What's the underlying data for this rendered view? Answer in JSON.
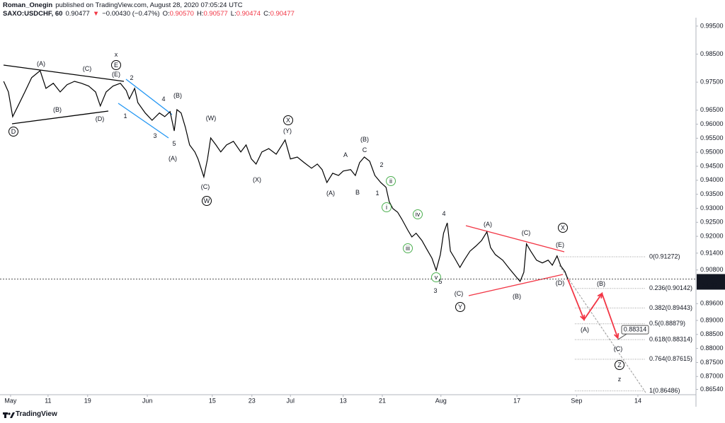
{
  "header": {
    "author": "Roman_Onegin",
    "published": "published on TradingView.com, August 28, 2020 07:05:24 UTC",
    "symbol": "SAXO:USDCHF, 60",
    "last": "0.90477",
    "change": "−0.00430 (−0.47%)",
    "ohlc": [
      {
        "label": "O:",
        "value": "0.90570"
      },
      {
        "label": "H:",
        "value": "0.90577"
      },
      {
        "label": "L:",
        "value": "0.90474"
      },
      {
        "label": "C:",
        "value": "0.90477"
      }
    ]
  },
  "footer": {
    "brand": "TradingView"
  },
  "chart_data": {
    "type": "line",
    "color": "#000000",
    "grid": false,
    "xlim": [
      0,
      131.8
    ],
    "ylim": [
      0.8635,
      0.998
    ],
    "xticks": [
      {
        "value": 2.0,
        "label": "May"
      },
      {
        "value": 9.1,
        "label": "11"
      },
      {
        "value": 16.6,
        "label": "19"
      },
      {
        "value": 27.9,
        "label": "Jun"
      },
      {
        "value": 40.2,
        "label": "15"
      },
      {
        "value": 47.7,
        "label": "23"
      },
      {
        "value": 55.0,
        "label": "Jul"
      },
      {
        "value": 65.0,
        "label": "13"
      },
      {
        "value": 72.4,
        "label": "21"
      },
      {
        "value": 83.5,
        "label": "Aug"
      },
      {
        "value": 97.9,
        "label": "17"
      },
      {
        "value": 109.2,
        "label": "Sep"
      },
      {
        "value": 120.8,
        "label": "14"
      }
    ],
    "yticks": [
      {
        "value": 0.995,
        "label": "0.99500"
      },
      {
        "value": 0.985,
        "label": "0.98500"
      },
      {
        "value": 0.975,
        "label": "0.97500"
      },
      {
        "value": 0.965,
        "label": "0.96500"
      },
      {
        "value": 0.96,
        "label": "0.96000"
      },
      {
        "value": 0.955,
        "label": "0.95500"
      },
      {
        "value": 0.95,
        "label": "0.95000"
      },
      {
        "value": 0.945,
        "label": "0.94500"
      },
      {
        "value": 0.94,
        "label": "0.94000"
      },
      {
        "value": 0.935,
        "label": "0.93500"
      },
      {
        "value": 0.93,
        "label": "0.93000"
      },
      {
        "value": 0.925,
        "label": "0.92500"
      },
      {
        "value": 0.92,
        "label": "0.92000"
      },
      {
        "value": 0.914,
        "label": "0.91400"
      },
      {
        "value": 0.908,
        "label": "0.90800"
      },
      {
        "value": 0.896,
        "label": "0.89600"
      },
      {
        "value": 0.89,
        "label": "0.89000"
      },
      {
        "value": 0.885,
        "label": "0.88500"
      },
      {
        "value": 0.88,
        "label": "0.88000"
      },
      {
        "value": 0.875,
        "label": "0.87500"
      },
      {
        "value": 0.87,
        "label": "0.87000"
      },
      {
        "value": 0.8654,
        "label": "0.86540"
      }
    ],
    "x": [
      0.7,
      1.6,
      2.4,
      3.4,
      4.7,
      6.0,
      7.6,
      8.7,
      10.1,
      11.4,
      12.7,
      14.1,
      15.4,
      16.8,
      18.1,
      19.0,
      20.1,
      21.4,
      22.8,
      23.9,
      24.5,
      25.5,
      26.1,
      27.5,
      28.8,
      30.2,
      31.2,
      32.2,
      33.0,
      33.5,
      34.3,
      35.1,
      35.9,
      36.9,
      37.5,
      38.6,
      39.3,
      39.9,
      40.9,
      41.8,
      42.9,
      44.2,
      45.6,
      46.6,
      47.6,
      48.5,
      49.6,
      50.9,
      52.3,
      53.4,
      54.0,
      55.0,
      56.3,
      57.6,
      59.0,
      60.1,
      61.0,
      61.9,
      63.0,
      64.1,
      65.0,
      66.4,
      67.3,
      68.1,
      69.0,
      70.0,
      71.0,
      72.1,
      73.1,
      73.7,
      74.4,
      75.3,
      76.1,
      77.2,
      78.0,
      78.8,
      79.9,
      80.8,
      81.8,
      82.6,
      83.4,
      84.0,
      84.7,
      85.3,
      86.1,
      87.1,
      87.9,
      89.0,
      90.1,
      91.2,
      92.2,
      92.9,
      93.8,
      95.2,
      96.5,
      97.6,
      98.5,
      99.2,
      99.7,
      100.5,
      101.6,
      102.7,
      103.8,
      104.6,
      105.5,
      106.2,
      107.0,
      107.5
    ],
    "values": [
      0.9753,
      0.9715,
      0.9627,
      0.9665,
      0.9715,
      0.9766,
      0.9791,
      0.9728,
      0.9746,
      0.9715,
      0.9741,
      0.9753,
      0.9746,
      0.9736,
      0.9715,
      0.9665,
      0.9715,
      0.9736,
      0.9746,
      0.972,
      0.969,
      0.9728,
      0.9677,
      0.964,
      0.9614,
      0.964,
      0.9627,
      0.9645,
      0.9576,
      0.9652,
      0.964,
      0.9589,
      0.9526,
      0.9501,
      0.9476,
      0.9412,
      0.9476,
      0.9551,
      0.9526,
      0.9501,
      0.9526,
      0.9539,
      0.9501,
      0.9526,
      0.9476,
      0.9458,
      0.9501,
      0.9513,
      0.9493,
      0.9526,
      0.9544,
      0.9476,
      0.9483,
      0.9463,
      0.9443,
      0.9458,
      0.9438,
      0.9392,
      0.9425,
      0.9417,
      0.9433,
      0.9438,
      0.9417,
      0.9463,
      0.9483,
      0.9468,
      0.9417,
      0.9392,
      0.9375,
      0.9324,
      0.9299,
      0.9286,
      0.9261,
      0.9223,
      0.9198,
      0.9211,
      0.9185,
      0.9155,
      0.9122,
      0.9079,
      0.9135,
      0.9211,
      0.9248,
      0.9147,
      0.9122,
      0.9089,
      0.9115,
      0.9147,
      0.9165,
      0.9185,
      0.9216,
      0.916,
      0.9135,
      0.9115,
      0.9084,
      0.9059,
      0.9039,
      0.9072,
      0.9173,
      0.9147,
      0.9115,
      0.9105,
      0.9115,
      0.9097,
      0.913,
      0.9094,
      0.9074,
      0.9048
    ],
    "price_tag": {
      "value": 0.90477,
      "label": "0.90477",
      "countdown": "54:37"
    },
    "fib_levels": [
      {
        "value": 0.91272,
        "label": "0(0.91272)"
      },
      {
        "value": 0.90142,
        "label": "0.236(0.90142)"
      },
      {
        "value": 0.89443,
        "label": "0.382(0.89443)"
      },
      {
        "value": 0.88879,
        "label": "0.5(0.88879)"
      },
      {
        "value": 0.88314,
        "label": "0.618(0.88314)"
      },
      {
        "value": 0.87615,
        "label": "0.764(0.87615)"
      },
      {
        "value": 0.86486,
        "label": "1(0.86486)"
      }
    ],
    "projection": {
      "color": "#f23645",
      "x": [
        107.5,
        110.6,
        114.0,
        117.0
      ],
      "values": [
        0.9048,
        0.8903,
        0.8996,
        0.8837
      ]
    },
    "target": {
      "value": 0.88314,
      "label": "0.88314"
    },
    "annotations": [
      {
        "text": "x",
        "color": "#f48fb1"
      },
      {
        "text": "E",
        "color": "#000000",
        "circled": true
      },
      {
        "text": "(E)",
        "color": "#f23645"
      },
      {
        "text": "2",
        "color": "#2196f3"
      },
      {
        "text": "4",
        "color": "#2196f3"
      },
      {
        "text": "(B)",
        "color": "#f23645"
      },
      {
        "text": "(A)",
        "color": "#f23645"
      },
      {
        "text": "(C)",
        "color": "#f23645"
      },
      {
        "text": "(B)",
        "color": "#f23645"
      },
      {
        "text": "(D)",
        "color": "#f23645"
      },
      {
        "text": "D",
        "color": "#000000",
        "circled": true
      },
      {
        "text": "1",
        "color": "#2196f3"
      },
      {
        "text": "3",
        "color": "#2196f3"
      },
      {
        "text": "5",
        "color": "#2196f3"
      },
      {
        "text": "(A)",
        "color": "#f23645"
      },
      {
        "text": "(W)",
        "color": "#f23645"
      },
      {
        "text": "(C)",
        "color": "#f23645"
      },
      {
        "text": "W",
        "color": "#000000",
        "circled": true
      },
      {
        "text": "X",
        "color": "#000000",
        "circled": true
      },
      {
        "text": "(Y)",
        "color": "#f23645"
      },
      {
        "text": "(X)",
        "color": "#f23645"
      },
      {
        "text": "(A)",
        "color": "#f23645"
      },
      {
        "text": "A",
        "color": "#2196f3"
      },
      {
        "text": "B",
        "color": "#2196f3"
      },
      {
        "text": "(B)",
        "color": "#f23645"
      },
      {
        "text": "C",
        "color": "#2196f3"
      },
      {
        "text": "2",
        "color": "#2196f3"
      },
      {
        "text": "1",
        "color": "#2196f3"
      },
      {
        "text": "ii",
        "color": "#4caf50",
        "circled": true
      },
      {
        "text": "i",
        "color": "#4caf50",
        "circled": true
      },
      {
        "text": "iv",
        "color": "#4caf50",
        "circled": true
      },
      {
        "text": "4",
        "color": "#2196f3"
      },
      {
        "text": "iii",
        "color": "#4caf50",
        "circled": true
      },
      {
        "text": "v",
        "color": "#4caf50",
        "circled": true
      },
      {
        "text": "5",
        "color": "#2196f3"
      },
      {
        "text": "3",
        "color": "#2196f3"
      },
      {
        "text": "(C)",
        "color": "#f23645"
      },
      {
        "text": "Y",
        "color": "#000000",
        "circled": true
      },
      {
        "text": "(A)",
        "color": "#f23645"
      },
      {
        "text": "(C)",
        "color": "#f23645"
      },
      {
        "text": "X",
        "color": "#000000",
        "circled": true
      },
      {
        "text": "(E)",
        "color": "#f23645"
      },
      {
        "text": "(D)",
        "color": "#f23645"
      },
      {
        "text": "(B)",
        "color": "#f23645"
      },
      {
        "text": "(B)",
        "color": "#f23645"
      },
      {
        "text": "(A)",
        "color": "#f23645"
      },
      {
        "text": "(C)",
        "color": "#f23645"
      },
      {
        "text": "Z",
        "color": "#000000",
        "circled": true
      },
      {
        "text": "z",
        "color": "#f48fb1"
      }
    ]
  }
}
